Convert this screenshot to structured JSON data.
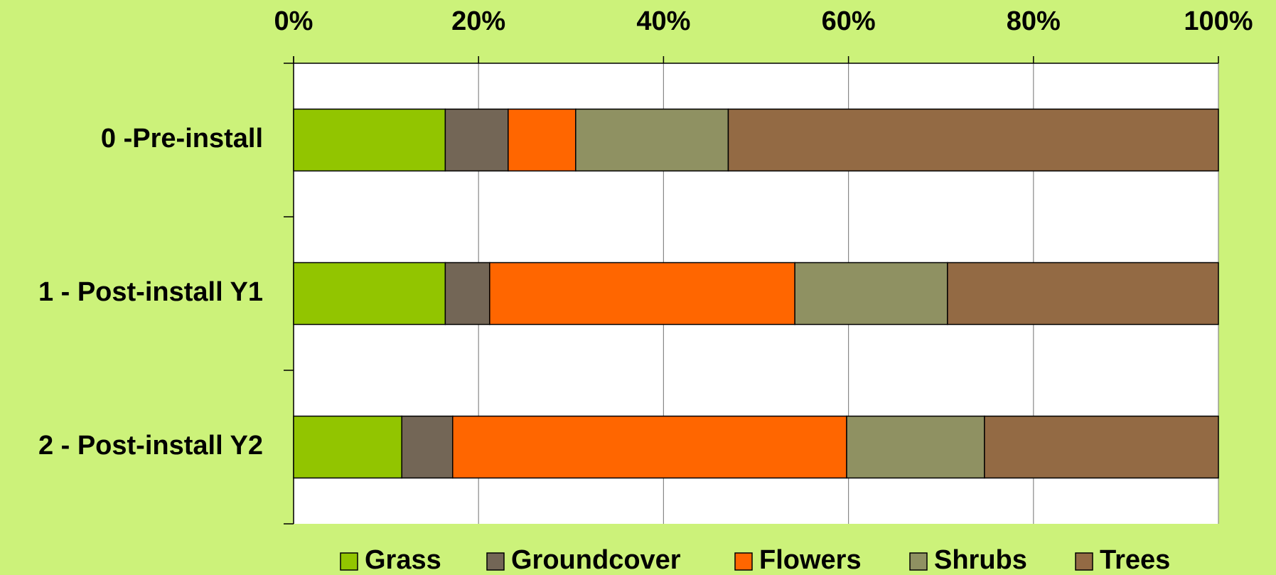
{
  "chart_data": {
    "type": "stacked_barh",
    "categories": [
      "0 -Pre-install",
      "1 - Post-install Y1",
      "2 - Post-install Y2"
    ],
    "series": [
      {
        "name": "Grass",
        "color": "#92c500",
        "values": [
          16.4,
          16.4,
          11.7
        ]
      },
      {
        "name": "Groundcover",
        "color": "#736656",
        "values": [
          6.8,
          4.8,
          5.5
        ]
      },
      {
        "name": "Flowers",
        "color": "#ff6600",
        "values": [
          7.3,
          33.0,
          42.6
        ]
      },
      {
        "name": "Shrubs",
        "color": "#8f9162",
        "values": [
          16.5,
          16.5,
          14.9
        ]
      },
      {
        "name": "Trees",
        "color": "#936a44",
        "values": [
          53.0,
          29.3,
          25.3
        ]
      }
    ],
    "xlim": [
      0,
      100
    ],
    "xticks": [
      {
        "value": 0,
        "label": "0%"
      },
      {
        "value": 20,
        "label": "20%"
      },
      {
        "value": 40,
        "label": "40%"
      },
      {
        "value": 60,
        "label": "60%"
      },
      {
        "value": 80,
        "label": "80%"
      },
      {
        "value": 100,
        "label": "100%"
      }
    ],
    "grid": true,
    "legend": "bottom"
  }
}
